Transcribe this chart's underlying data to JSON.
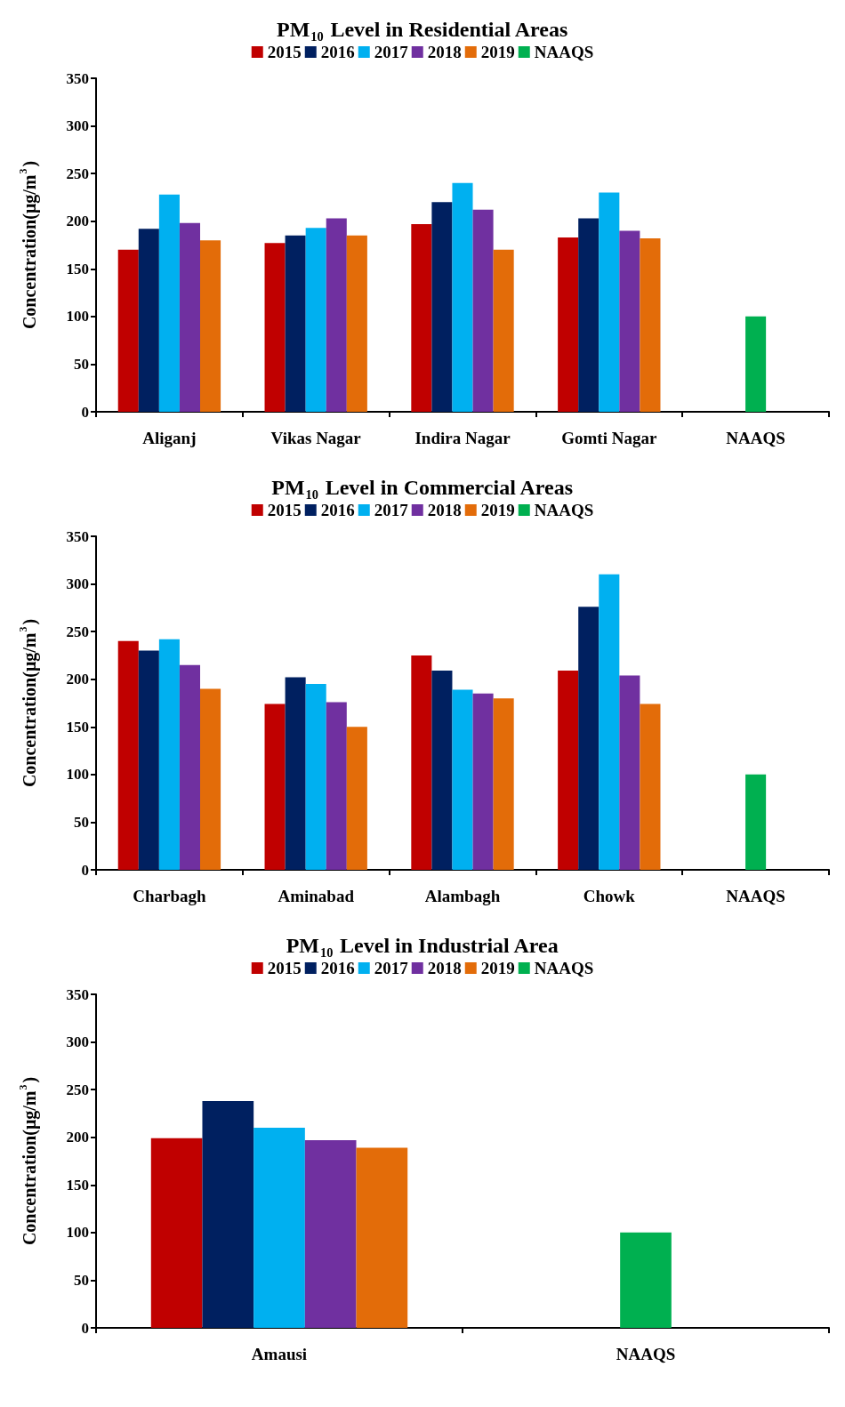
{
  "chart_data": [
    {
      "type": "bar",
      "title": "PM$_{10}$ Level in Residential Areas",
      "ylabel": "Concentration(μg/m$^{3}$)",
      "categories": [
        "Aliganj",
        "Vikas Nagar",
        "Indira Nagar",
        "Gomti Nagar",
        "NAAQS"
      ],
      "series": [
        {
          "name": "2015",
          "color": "#c00000",
          "values": [
            170,
            177,
            197,
            183,
            null
          ]
        },
        {
          "name": "2016",
          "color": "#002060",
          "values": [
            192,
            185,
            220,
            203,
            null
          ]
        },
        {
          "name": "2017",
          "color": "#00b0f0",
          "values": [
            228,
            193,
            240,
            230,
            null
          ]
        },
        {
          "name": "2018",
          "color": "#7030a0",
          "values": [
            198,
            203,
            212,
            190,
            null
          ]
        },
        {
          "name": "2019",
          "color": "#e36c09",
          "values": [
            180,
            185,
            170,
            182,
            null
          ]
        },
        {
          "name": "NAAQS",
          "color": "#00b050",
          "values": [
            null,
            null,
            null,
            null,
            100
          ]
        }
      ],
      "ylim": [
        0,
        350
      ],
      "yticks": [
        0,
        50,
        100,
        150,
        200,
        250,
        300,
        350
      ],
      "grid": false,
      "legend": "top"
    },
    {
      "type": "bar",
      "title": "PM$_{10}$ Level in Commercial Areas",
      "ylabel": "Concentration(μg/m$^{3}$)",
      "categories": [
        "Charbagh",
        "Aminabad",
        "Alambagh",
        "Chowk",
        "NAAQS"
      ],
      "series": [
        {
          "name": "2015",
          "color": "#c00000",
          "values": [
            240,
            174,
            225,
            209,
            null
          ]
        },
        {
          "name": "2016",
          "color": "#002060",
          "values": [
            230,
            202,
            209,
            276,
            null
          ]
        },
        {
          "name": "2017",
          "color": "#00b0f0",
          "values": [
            242,
            195,
            189,
            310,
            null
          ]
        },
        {
          "name": "2018",
          "color": "#7030a0",
          "values": [
            215,
            176,
            185,
            204,
            null
          ]
        },
        {
          "name": "2019",
          "color": "#e36c09",
          "values": [
            190,
            150,
            180,
            174,
            null
          ]
        },
        {
          "name": "NAAQS",
          "color": "#00b050",
          "values": [
            null,
            null,
            null,
            null,
            100
          ]
        }
      ],
      "ylim": [
        0,
        350
      ],
      "yticks": [
        0,
        50,
        100,
        150,
        200,
        250,
        300,
        350
      ],
      "grid": false,
      "legend": "top"
    },
    {
      "type": "bar",
      "title": "PM$_{10}$ Level in Industrial Area",
      "ylabel": "Concentration(μg/m$^{3}$)",
      "categories": [
        "Amausi",
        "NAAQS"
      ],
      "series": [
        {
          "name": "2015",
          "color": "#c00000",
          "values": [
            199,
            null
          ]
        },
        {
          "name": "2016",
          "color": "#002060",
          "values": [
            238,
            null
          ]
        },
        {
          "name": "2017",
          "color": "#00b0f0",
          "values": [
            210,
            null
          ]
        },
        {
          "name": "2018",
          "color": "#7030a0",
          "values": [
            197,
            null
          ]
        },
        {
          "name": "2019",
          "color": "#e36c09",
          "values": [
            189,
            null
          ]
        },
        {
          "name": "NAAQS",
          "color": "#00b050",
          "values": [
            null,
            100
          ]
        }
      ],
      "ylim": [
        0,
        350
      ],
      "yticks": [
        0,
        50,
        100,
        150,
        200,
        250,
        300,
        350
      ],
      "grid": false,
      "legend": "top"
    }
  ]
}
